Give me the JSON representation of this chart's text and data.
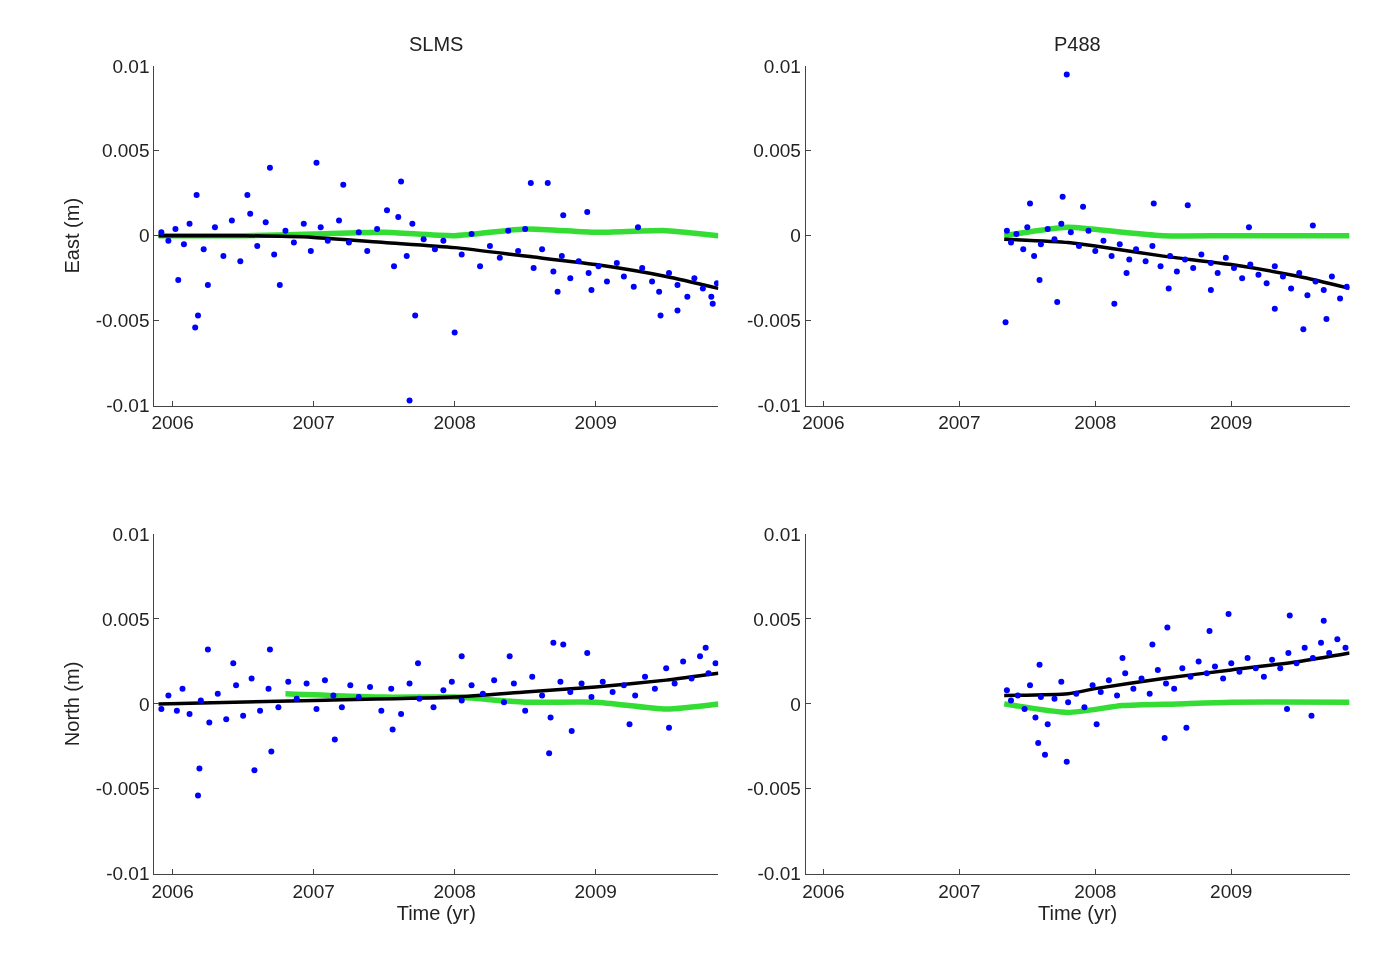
{
  "chart_data": [
    {
      "type": "scatter",
      "title": "SLMS",
      "ylabel": "East (m)",
      "xlim": [
        2005.87,
        2009.87
      ],
      "ylim": [
        -0.01,
        0.01
      ],
      "xticks": [
        2006,
        2007,
        2008,
        2009
      ],
      "yticks": [
        -0.01,
        -0.005,
        0,
        0.005,
        0.01
      ],
      "series": [
        {
          "marker": "circle",
          "color": "#0000ff",
          "x": [
            2006.17,
            2006.16,
            2006.18,
            2006.69,
            2007.02,
            2007.21,
            2007.62,
            2007.68,
            2007.72,
            2008.0,
            2008.54,
            2008.66,
            2009.46,
            2009.3,
            2006.04,
            2006.25,
            2006.76,
            2006.53,
            2008.94,
            2008.77,
            2009.58,
            2009.83,
            2008.97,
            2008.73,
            2005.92,
            2005.97,
            2006.02,
            2006.08,
            2006.12,
            2006.22,
            2006.3,
            2006.36,
            2006.42,
            2006.48,
            2006.55,
            2006.6,
            2006.66,
            2006.72,
            2006.8,
            2006.86,
            2006.93,
            2006.98,
            2007.05,
            2007.1,
            2007.18,
            2007.25,
            2007.32,
            2007.38,
            2007.45,
            2007.52,
            2007.57,
            2007.6,
            2007.66,
            2007.7,
            2007.78,
            2007.86,
            2007.92,
            2008.05,
            2008.12,
            2008.18,
            2008.25,
            2008.32,
            2008.38,
            2008.45,
            2008.5,
            2008.56,
            2008.62,
            2008.7,
            2008.76,
            2008.82,
            2008.88,
            2008.95,
            2009.02,
            2009.08,
            2009.15,
            2009.2,
            2009.27,
            2009.33,
            2009.4,
            2009.45,
            2009.52,
            2009.58,
            2009.65,
            2009.7,
            2009.76,
            2009.82,
            2009.86
          ],
          "values": [
            0.0024,
            -0.0054,
            -0.0047,
            0.004,
            0.0043,
            0.003,
            0.0032,
            -0.0097,
            -0.0047,
            -0.0057,
            0.0031,
            0.0031,
            -0.0047,
            0.0005,
            -0.0026,
            -0.0029,
            -0.0029,
            0.0024,
            0.0014,
            0.0012,
            -0.0044,
            -0.004,
            -0.0032,
            -0.0033,
            0.0002,
            -0.0003,
            0.0004,
            -0.0005,
            0.0007,
            -0.0008,
            0.0005,
            -0.0012,
            0.0009,
            -0.0015,
            0.0013,
            -0.0006,
            0.0008,
            -0.0011,
            0.0003,
            -0.0004,
            0.0007,
            -0.0009,
            0.0005,
            -0.0003,
            0.0009,
            -0.0004,
            0.0002,
            -0.0009,
            0.0004,
            0.0015,
            -0.0018,
            0.0011,
            -0.0012,
            0.0007,
            -0.0002,
            -0.0008,
            -0.0003,
            -0.0011,
            0.0001,
            -0.0018,
            -0.0006,
            -0.0013,
            0.0003,
            -0.0009,
            0.0004,
            -0.0019,
            -0.0008,
            -0.0021,
            -0.0012,
            -0.0025,
            -0.0015,
            -0.0022,
            -0.0018,
            -0.0027,
            -0.0016,
            -0.0024,
            -0.003,
            -0.0019,
            -0.0027,
            -0.0033,
            -0.0022,
            -0.0029,
            -0.0036,
            -0.0025,
            -0.0031,
            -0.0036,
            -0.0028
          ]
        },
        {
          "type": "line",
          "marker": "none",
          "color": "#33dd33",
          "x": [
            2005.9,
            2006.5,
            2007.0,
            2007.5,
            2008.0,
            2008.5,
            2009.0,
            2009.5,
            2009.87
          ],
          "values": [
            0,
            0,
            0.0001,
            0.0002,
            0,
            0.0004,
            0.0002,
            0.0003,
            0
          ]
        },
        {
          "type": "line",
          "marker": "none",
          "color": "#000000",
          "x": [
            2005.9,
            2006.5,
            2007.0,
            2007.5,
            2008.0,
            2008.5,
            2009.0,
            2009.5,
            2009.87
          ],
          "values": [
            0,
            0,
            -0.0001,
            -0.0004,
            -0.0007,
            -0.0012,
            -0.0017,
            -0.0024,
            -0.0031
          ]
        }
      ]
    },
    {
      "type": "scatter",
      "title": "P488",
      "xlim": [
        2005.87,
        2009.87
      ],
      "ylim": [
        -0.01,
        0.01
      ],
      "xticks": [
        2006,
        2007,
        2008,
        2009
      ],
      "yticks": [
        -0.01,
        -0.005,
        0,
        0.005,
        0.01
      ],
      "series": [
        {
          "marker": "circle",
          "color": "#0000ff",
          "x": [
            2007.79,
            2007.34,
            2007.76,
            2007.52,
            2007.91,
            2008.43,
            2008.68,
            2007.72,
            2008.14,
            2009.53,
            2009.32,
            2009.7,
            2009.6,
            2009.13,
            2008.85,
            2008.54,
            2007.59,
            2008.23,
            2007.35,
            2007.38,
            2007.42,
            2007.47,
            2007.5,
            2007.55,
            2007.6,
            2007.65,
            2007.7,
            2007.75,
            2007.82,
            2007.88,
            2007.95,
            2008.0,
            2008.06,
            2008.12,
            2008.18,
            2008.25,
            2008.3,
            2008.37,
            2008.42,
            2008.48,
            2008.55,
            2008.6,
            2008.66,
            2008.72,
            2008.78,
            2008.85,
            2008.9,
            2008.96,
            2009.02,
            2009.08,
            2009.14,
            2009.2,
            2009.26,
            2009.32,
            2009.38,
            2009.44,
            2009.5,
            2009.56,
            2009.62,
            2009.68,
            2009.74,
            2009.8,
            2009.85
          ],
          "values": [
            0.0095,
            -0.0051,
            0.0023,
            0.0019,
            0.0017,
            0.0019,
            0.0018,
            -0.0039,
            -0.004,
            -0.0055,
            -0.0043,
            -0.0049,
            0.0006,
            0.0005,
            -0.0032,
            -0.0031,
            -0.0026,
            -0.0022,
            0.0003,
            -0.0004,
            0.0001,
            -0.0008,
            0.0005,
            -0.0012,
            -0.0005,
            0.0004,
            -0.0002,
            0.0007,
            0.0002,
            -0.0006,
            0.0003,
            -0.0009,
            -0.0003,
            -0.0012,
            -0.0005,
            -0.0014,
            -0.0008,
            -0.0015,
            -0.0006,
            -0.0018,
            -0.0012,
            -0.0021,
            -0.0014,
            -0.0019,
            -0.0011,
            -0.0016,
            -0.0022,
            -0.0013,
            -0.0019,
            -0.0025,
            -0.0017,
            -0.0023,
            -0.0028,
            -0.0018,
            -0.0024,
            -0.0031,
            -0.0022,
            -0.0035,
            -0.0027,
            -0.0032,
            -0.0024,
            -0.0037,
            -0.003
          ]
        },
        {
          "type": "line",
          "marker": "none",
          "color": "#33dd33",
          "x": [
            2007.33,
            2007.8,
            2008.2,
            2008.5,
            2009.0,
            2009.87
          ],
          "values": [
            0,
            0.0005,
            0.0002,
            0,
            0,
            0
          ]
        },
        {
          "type": "line",
          "marker": "none",
          "color": "#000000",
          "x": [
            2007.33,
            2007.8,
            2008.0,
            2008.5,
            2009.0,
            2009.5,
            2009.87
          ],
          "values": [
            -0.0002,
            -0.0004,
            -0.0006,
            -0.0012,
            -0.0017,
            -0.0024,
            -0.0031
          ]
        }
      ]
    },
    {
      "type": "scatter",
      "xlabel": "Time (yr)",
      "ylabel": "North (m)",
      "xlim": [
        2005.87,
        2009.87
      ],
      "ylim": [
        -0.01,
        0.01
      ],
      "xticks": [
        2006,
        2007,
        2008,
        2009
      ],
      "yticks": [
        -0.01,
        -0.005,
        0,
        0.005,
        0.01
      ],
      "series": [
        {
          "marker": "circle",
          "color": "#0000ff",
          "x": [
            2006.18,
            2006.19,
            2006.58,
            2006.25,
            2006.69,
            2006.7,
            2007.15,
            2008.67,
            2008.7,
            2008.77,
            2008.94,
            2009.78,
            2009.52,
            2009.24,
            2008.05,
            2008.39,
            2007.56,
            2008.83,
            2007.74,
            2006.43,
            2005.92,
            2005.97,
            2006.03,
            2006.07,
            2006.12,
            2006.2,
            2006.26,
            2006.32,
            2006.38,
            2006.45,
            2006.5,
            2006.56,
            2006.62,
            2006.68,
            2006.75,
            2006.82,
            2006.88,
            2006.95,
            2007.02,
            2007.08,
            2007.14,
            2007.2,
            2007.26,
            2007.32,
            2007.4,
            2007.48,
            2007.55,
            2007.62,
            2007.68,
            2007.75,
            2007.85,
            2007.92,
            2007.98,
            2008.05,
            2008.12,
            2008.2,
            2008.28,
            2008.35,
            2008.42,
            2008.5,
            2008.55,
            2008.62,
            2008.68,
            2008.75,
            2008.82,
            2008.9,
            2008.97,
            2009.05,
            2009.12,
            2009.2,
            2009.28,
            2009.35,
            2009.42,
            2009.5,
            2009.56,
            2009.62,
            2009.68,
            2009.74,
            2009.8,
            2009.85
          ],
          "values": [
            -0.0054,
            -0.0038,
            -0.0039,
            0.0032,
            0.0032,
            -0.0028,
            -0.0021,
            -0.0029,
            0.0036,
            0.0035,
            0.003,
            0.0033,
            -0.0014,
            -0.0012,
            0.0028,
            0.0028,
            -0.0015,
            -0.0016,
            0.0024,
            0.0024,
            -0.0003,
            0.0005,
            -0.0004,
            0.0009,
            -0.0006,
            0.0002,
            -0.0011,
            0.0006,
            -0.0009,
            0.0011,
            -0.0007,
            0.0015,
            -0.0004,
            0.0009,
            -0.0002,
            0.0013,
            0.0003,
            0.0012,
            -0.0003,
            0.0014,
            0.0005,
            -0.0002,
            0.0011,
            0.0004,
            0.001,
            -0.0004,
            0.0009,
            -0.0006,
            0.0012,
            0.0003,
            -0.0002,
            0.0008,
            0.0013,
            0.0002,
            0.0011,
            0.0006,
            0.0014,
            0.0001,
            0.0012,
            -0.0004,
            0.0016,
            0.0005,
            -0.0008,
            0.0013,
            0.0007,
            0.0012,
            0.0004,
            0.0013,
            0.0007,
            0.0011,
            0.0005,
            0.0016,
            0.0009,
            0.0021,
            0.0012,
            0.0025,
            0.0015,
            0.0028,
            0.0018,
            0.0024
          ]
        },
        {
          "type": "line",
          "marker": "none",
          "color": "#33dd33",
          "x": [
            2006.8,
            2007.5,
            2008.0,
            2008.5,
            2009.0,
            2009.5,
            2009.87
          ],
          "values": [
            0.0006,
            0.0004,
            0.0004,
            0.0001,
            0.0001,
            -0.0003,
            0
          ]
        },
        {
          "type": "line",
          "marker": "none",
          "color": "#000000",
          "x": [
            2005.9,
            2007.0,
            2008.0,
            2008.5,
            2009.0,
            2009.5,
            2009.87
          ],
          "values": [
            0,
            0.0002,
            0.0004,
            0.0007,
            0.001,
            0.0014,
            0.0018
          ]
        }
      ]
    },
    {
      "type": "scatter",
      "xlabel": "Time (yr)",
      "xlim": [
        2005.87,
        2009.87
      ],
      "ylim": [
        -0.01,
        0.01
      ],
      "xticks": [
        2006,
        2007,
        2008,
        2009
      ],
      "yticks": [
        -0.01,
        -0.005,
        0,
        0.005,
        0.01
      ],
      "series": [
        {
          "marker": "circle",
          "color": "#0000ff",
          "x": [
            2008.98,
            2008.53,
            2008.84,
            2009.43,
            2009.68,
            2007.63,
            2007.79,
            2007.58,
            2008.51,
            2008.01,
            2009.41,
            2009.59,
            2007.59,
            2008.2,
            2008.42,
            2008.67,
            2007.35,
            2007.38,
            2007.43,
            2007.48,
            2007.52,
            2007.56,
            2007.6,
            2007.65,
            2007.7,
            2007.75,
            2007.8,
            2007.86,
            2007.92,
            2007.98,
            2008.04,
            2008.1,
            2008.16,
            2008.22,
            2008.28,
            2008.34,
            2008.4,
            2008.46,
            2008.52,
            2008.58,
            2008.64,
            2008.7,
            2008.76,
            2008.82,
            2008.88,
            2008.94,
            2009.0,
            2009.06,
            2009.12,
            2009.18,
            2009.24,
            2009.3,
            2009.36,
            2009.42,
            2009.48,
            2009.54,
            2009.6,
            2009.66,
            2009.72,
            2009.78,
            2009.84
          ],
          "values": [
            0.0053,
            0.0045,
            0.0043,
            0.0052,
            0.0049,
            -0.003,
            -0.0034,
            -0.0023,
            -0.002,
            -0.0012,
            -0.0003,
            -0.0007,
            0.0023,
            0.0027,
            0.0035,
            -0.0014,
            0.0008,
            0.0002,
            0.0005,
            -0.0003,
            0.0011,
            -0.0008,
            0.0004,
            -0.0012,
            0.0003,
            0.0013,
            0.0001,
            0.0006,
            -0.0002,
            0.0011,
            0.0007,
            0.0014,
            0.0005,
            0.0018,
            0.0009,
            0.0015,
            0.0006,
            0.002,
            0.0012,
            0.0009,
            0.0021,
            0.0016,
            0.0025,
            0.0018,
            0.0022,
            0.0015,
            0.0024,
            0.0019,
            0.0027,
            0.0021,
            0.0016,
            0.0026,
            0.0021,
            0.003,
            0.0024,
            0.0033,
            0.0027,
            0.0036,
            0.003,
            0.0038,
            0.0033
          ]
        },
        {
          "type": "line",
          "marker": "none",
          "color": "#33dd33",
          "x": [
            2007.33,
            2007.8,
            2008.2,
            2008.6,
            2009.0,
            2009.87
          ],
          "values": [
            0,
            -0.0005,
            -0.0001,
            0,
            0.0001,
            0.0001
          ]
        },
        {
          "type": "line",
          "marker": "none",
          "color": "#000000",
          "x": [
            2007.33,
            2007.8,
            2008.0,
            2008.5,
            2009.0,
            2009.5,
            2009.87
          ],
          "values": [
            0.0005,
            0.0006,
            0.0009,
            0.0015,
            0.002,
            0.0025,
            0.003
          ]
        }
      ]
    }
  ]
}
